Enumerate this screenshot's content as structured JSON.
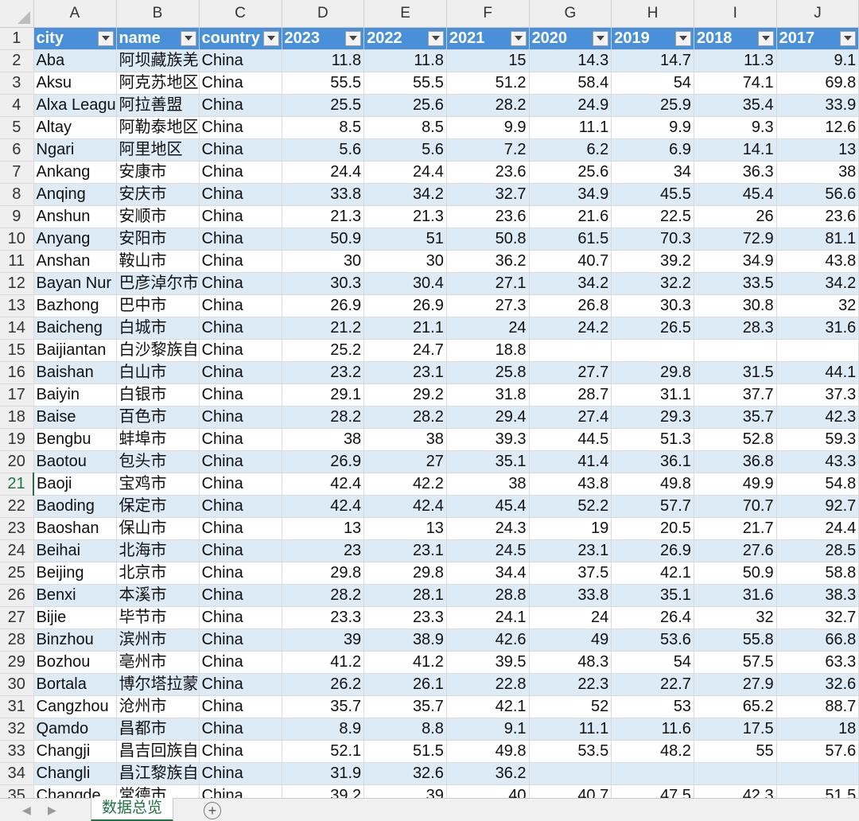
{
  "column_letters": [
    "A",
    "B",
    "C",
    "D",
    "E",
    "F",
    "G",
    "H",
    "I",
    "J"
  ],
  "selected_row": 21,
  "headers": [
    "city",
    "name",
    "country",
    "2023",
    "2022",
    "2021",
    "2020",
    "2019",
    "2018",
    "2017"
  ],
  "rows": [
    {
      "n": 2,
      "v": [
        "Aba",
        "阿坝藏族羌",
        "China",
        "11.8",
        "11.8",
        "15",
        "14.3",
        "14.7",
        "11.3",
        "9.1"
      ]
    },
    {
      "n": 3,
      "v": [
        "Aksu",
        "阿克苏地区",
        "China",
        "55.5",
        "55.5",
        "51.2",
        "58.4",
        "54",
        "74.1",
        "69.8"
      ]
    },
    {
      "n": 4,
      "v": [
        "Alxa League",
        "阿拉善盟",
        "China",
        "25.5",
        "25.6",
        "28.2",
        "24.9",
        "25.9",
        "35.4",
        "33.9"
      ]
    },
    {
      "n": 5,
      "v": [
        "Altay",
        "阿勒泰地区",
        "China",
        "8.5",
        "8.5",
        "9.9",
        "11.1",
        "9.9",
        "9.3",
        "12.6"
      ]
    },
    {
      "n": 6,
      "v": [
        "Ngari",
        "阿里地区",
        "China",
        "5.6",
        "5.6",
        "7.2",
        "6.2",
        "6.9",
        "14.1",
        "13"
      ]
    },
    {
      "n": 7,
      "v": [
        "Ankang",
        "安康市",
        "China",
        "24.4",
        "24.4",
        "23.6",
        "25.6",
        "34",
        "36.3",
        "38"
      ]
    },
    {
      "n": 8,
      "v": [
        "Anqing",
        "安庆市",
        "China",
        "33.8",
        "34.2",
        "32.7",
        "34.9",
        "45.5",
        "45.4",
        "56.6"
      ]
    },
    {
      "n": 9,
      "v": [
        "Anshun",
        "安顺市",
        "China",
        "21.3",
        "21.3",
        "23.6",
        "21.6",
        "22.5",
        "26",
        "23.6"
      ]
    },
    {
      "n": 10,
      "v": [
        "Anyang",
        "安阳市",
        "China",
        "50.9",
        "51",
        "50.8",
        "61.5",
        "70.3",
        "72.9",
        "81.1"
      ]
    },
    {
      "n": 11,
      "v": [
        "Anshan",
        "鞍山市",
        "China",
        "30",
        "30",
        "36.2",
        "40.7",
        "39.2",
        "34.9",
        "43.8"
      ]
    },
    {
      "n": 12,
      "v": [
        "Bayan Nur",
        "巴彦淖尔市",
        "China",
        "30.3",
        "30.4",
        "27.1",
        "34.2",
        "32.2",
        "33.5",
        "34.2"
      ]
    },
    {
      "n": 13,
      "v": [
        "Bazhong",
        "巴中市",
        "China",
        "26.9",
        "26.9",
        "27.3",
        "26.8",
        "30.3",
        "30.8",
        "32"
      ]
    },
    {
      "n": 14,
      "v": [
        "Baicheng",
        "白城市",
        "China",
        "21.2",
        "21.1",
        "24",
        "24.2",
        "26.5",
        "28.3",
        "31.6"
      ]
    },
    {
      "n": 15,
      "v": [
        "Baijiantan",
        "白沙黎族自",
        "China",
        "25.2",
        "24.7",
        "18.8",
        "",
        "",
        "",
        ""
      ]
    },
    {
      "n": 16,
      "v": [
        "Baishan",
        "白山市",
        "China",
        "23.2",
        "23.1",
        "25.8",
        "27.7",
        "29.8",
        "31.5",
        "44.1"
      ]
    },
    {
      "n": 17,
      "v": [
        "Baiyin",
        "白银市",
        "China",
        "29.1",
        "29.2",
        "31.8",
        "28.7",
        "31.1",
        "37.7",
        "37.3"
      ]
    },
    {
      "n": 18,
      "v": [
        "Baise",
        "百色市",
        "China",
        "28.2",
        "28.2",
        "29.4",
        "27.4",
        "29.3",
        "35.7",
        "42.3"
      ]
    },
    {
      "n": 19,
      "v": [
        "Bengbu",
        "蚌埠市",
        "China",
        "38",
        "38",
        "39.3",
        "44.5",
        "51.3",
        "52.8",
        "59.3"
      ]
    },
    {
      "n": 20,
      "v": [
        "Baotou",
        "包头市",
        "China",
        "26.9",
        "27",
        "35.1",
        "41.4",
        "36.1",
        "36.8",
        "43.3"
      ]
    },
    {
      "n": 21,
      "v": [
        "Baoji",
        "宝鸡市",
        "China",
        "42.4",
        "42.2",
        "38",
        "43.8",
        "49.8",
        "49.9",
        "54.8"
      ]
    },
    {
      "n": 22,
      "v": [
        "Baoding",
        "保定市",
        "China",
        "42.4",
        "42.4",
        "45.4",
        "52.2",
        "57.7",
        "70.7",
        "92.7"
      ]
    },
    {
      "n": 23,
      "v": [
        "Baoshan",
        "保山市",
        "China",
        "13",
        "13",
        "24.3",
        "19",
        "20.5",
        "21.7",
        "24.4"
      ]
    },
    {
      "n": 24,
      "v": [
        "Beihai",
        "北海市",
        "China",
        "23",
        "23.1",
        "24.5",
        "23.1",
        "26.9",
        "27.6",
        "28.5"
      ]
    },
    {
      "n": 25,
      "v": [
        "Beijing",
        "北京市",
        "China",
        "29.8",
        "29.8",
        "34.4",
        "37.5",
        "42.1",
        "50.9",
        "58.8"
      ]
    },
    {
      "n": 26,
      "v": [
        "Benxi",
        "本溪市",
        "China",
        "28.2",
        "28.1",
        "28.8",
        "33.8",
        "35.1",
        "31.6",
        "38.3"
      ]
    },
    {
      "n": 27,
      "v": [
        "Bijie",
        "毕节市",
        "China",
        "23.3",
        "23.3",
        "24.1",
        "24",
        "26.4",
        "32",
        "32.7"
      ]
    },
    {
      "n": 28,
      "v": [
        "Binzhou",
        "滨州市",
        "China",
        "39",
        "38.9",
        "42.6",
        "49",
        "53.6",
        "55.8",
        "66.8"
      ]
    },
    {
      "n": 29,
      "v": [
        "Bozhou",
        "亳州市",
        "China",
        "41.2",
        "41.2",
        "39.5",
        "48.3",
        "54",
        "57.5",
        "63.3"
      ]
    },
    {
      "n": 30,
      "v": [
        "Bortala",
        "博尔塔拉蒙",
        "China",
        "26.2",
        "26.1",
        "22.8",
        "22.3",
        "22.7",
        "27.9",
        "32.6"
      ]
    },
    {
      "n": 31,
      "v": [
        "Cangzhou",
        "沧州市",
        "China",
        "35.7",
        "35.7",
        "42.1",
        "52",
        "53",
        "65.2",
        "88.7"
      ]
    },
    {
      "n": 32,
      "v": [
        "Qamdo",
        "昌都市",
        "China",
        "8.9",
        "8.8",
        "9.1",
        "11.1",
        "11.6",
        "17.5",
        "18"
      ]
    },
    {
      "n": 33,
      "v": [
        "Changji",
        "昌吉回族自",
        "China",
        "52.1",
        "51.5",
        "49.8",
        "53.5",
        "48.2",
        "55",
        "57.6"
      ]
    },
    {
      "n": 34,
      "v": [
        "Changli",
        "昌江黎族自",
        "China",
        "31.9",
        "32.6",
        "36.2",
        "",
        "",
        "",
        ""
      ]
    },
    {
      "n": 35,
      "v": [
        "Changde",
        "常德市",
        "China",
        "39.2",
        "39",
        "40",
        "40.7",
        "47.5",
        "42.3",
        "51.5"
      ]
    }
  ],
  "sheet_tab": "数据总览",
  "add_sheet_symbol": "+",
  "nav_left_symbol": "◀",
  "nav_right_symbol": "▶",
  "colors": {
    "header_fill": "#4a90d9",
    "band_fill": "#ddebf7",
    "accent": "#217346"
  }
}
